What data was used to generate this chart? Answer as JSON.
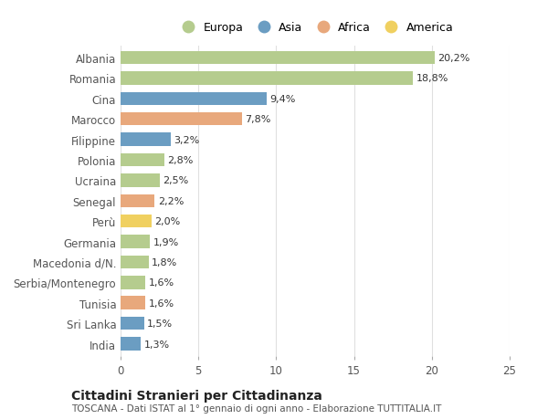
{
  "categories": [
    "Albania",
    "Romania",
    "Cina",
    "Marocco",
    "Filippine",
    "Polonia",
    "Ucraina",
    "Senegal",
    "Perù",
    "Germania",
    "Macedonia d/N.",
    "Serbia/Montenegro",
    "Tunisia",
    "Sri Lanka",
    "India"
  ],
  "values": [
    20.2,
    18.8,
    9.4,
    7.8,
    3.2,
    2.8,
    2.5,
    2.2,
    2.0,
    1.9,
    1.8,
    1.6,
    1.6,
    1.5,
    1.3
  ],
  "continents": [
    "Europa",
    "Europa",
    "Asia",
    "Africa",
    "Asia",
    "Europa",
    "Europa",
    "Africa",
    "America",
    "Europa",
    "Europa",
    "Europa",
    "Africa",
    "Asia",
    "Asia"
  ],
  "colors": {
    "Europa": "#b5cc8e",
    "Asia": "#6b9dc2",
    "Africa": "#e8a87c",
    "America": "#f0d060"
  },
  "legend_order": [
    "Europa",
    "Asia",
    "Africa",
    "America"
  ],
  "title": "Cittadini Stranieri per Cittadinanza",
  "subtitle": "TOSCANA - Dati ISTAT al 1° gennaio di ogni anno - Elaborazione TUTTITALIA.IT",
  "xlim": [
    0,
    25
  ],
  "xticks": [
    0,
    5,
    10,
    15,
    20,
    25
  ],
  "background_color": "#ffffff",
  "grid_color": "#e0e0e0"
}
